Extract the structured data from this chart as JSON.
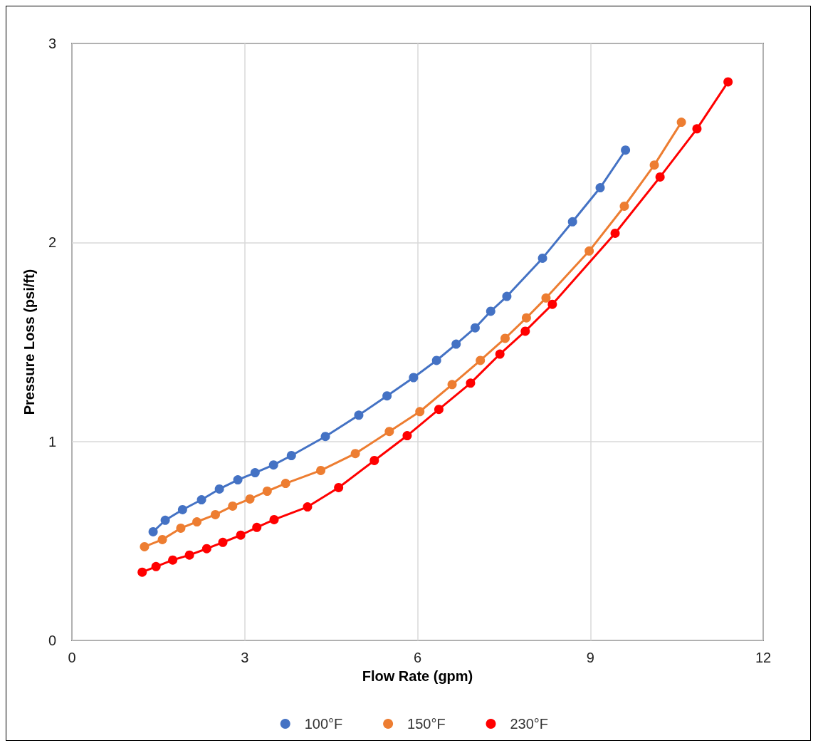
{
  "chart_data": {
    "type": "line",
    "xlabel": "Flow Rate (gpm)",
    "ylabel": "Pressure Loss (psi/ft)",
    "xlim": [
      0,
      12
    ],
    "xticks": [
      0,
      3,
      6,
      9,
      12
    ],
    "ylim": [
      0,
      3
    ],
    "yticks": [
      0,
      1,
      2,
      3
    ],
    "grid": true,
    "legend": "bottom",
    "marker": "circle",
    "line_style": "solid",
    "series": [
      {
        "name": "100°F",
        "color": "#4472c4",
        "x": [
          1.41,
          1.62,
          1.92,
          2.25,
          2.56,
          2.88,
          3.18,
          3.5,
          3.81,
          4.4,
          4.98,
          5.47,
          5.93,
          6.33,
          6.67,
          7.0,
          7.27,
          7.55,
          8.17,
          8.69,
          9.17,
          9.61
        ],
        "values": [
          0.546,
          0.604,
          0.657,
          0.707,
          0.761,
          0.807,
          0.843,
          0.882,
          0.929,
          1.025,
          1.132,
          1.229,
          1.321,
          1.407,
          1.489,
          1.571,
          1.654,
          1.729,
          1.921,
          2.104,
          2.275,
          2.464
        ]
      },
      {
        "name": "150°F",
        "color": "#ed7d31",
        "x": [
          1.26,
          1.57,
          1.89,
          2.17,
          2.49,
          2.79,
          3.09,
          3.39,
          3.71,
          4.32,
          4.92,
          5.51,
          6.04,
          6.6,
          7.09,
          7.52,
          7.89,
          8.23,
          8.98,
          9.59,
          10.11,
          10.58
        ],
        "values": [
          0.471,
          0.507,
          0.564,
          0.596,
          0.632,
          0.675,
          0.711,
          0.75,
          0.789,
          0.854,
          0.939,
          1.05,
          1.15,
          1.286,
          1.407,
          1.518,
          1.621,
          1.721,
          1.957,
          2.182,
          2.389,
          2.604
        ]
      },
      {
        "name": "230°F",
        "color": "#ff0000",
        "x": [
          1.22,
          1.46,
          1.75,
          2.04,
          2.34,
          2.62,
          2.93,
          3.21,
          3.51,
          4.09,
          4.63,
          5.25,
          5.82,
          6.37,
          6.92,
          7.43,
          7.87,
          8.34,
          9.43,
          10.21,
          10.85,
          11.39
        ],
        "values": [
          0.343,
          0.371,
          0.404,
          0.429,
          0.461,
          0.493,
          0.529,
          0.568,
          0.607,
          0.671,
          0.768,
          0.904,
          1.029,
          1.161,
          1.293,
          1.439,
          1.554,
          1.689,
          2.046,
          2.329,
          2.571,
          2.807
        ]
      }
    ]
  }
}
